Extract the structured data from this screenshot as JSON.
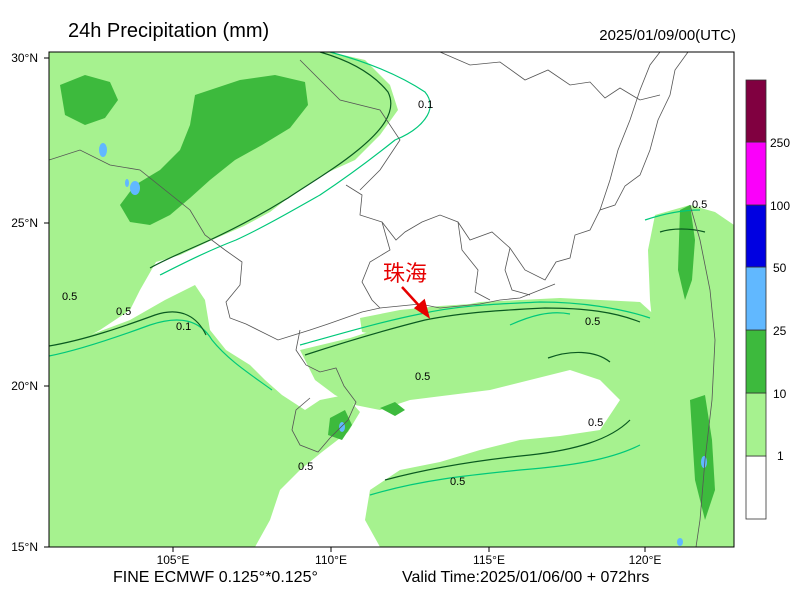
{
  "header": {
    "title": "24h Precipitation (mm)",
    "valid_date": "2025/01/09/00(UTC)"
  },
  "map": {
    "lat_labels": [
      "30°N",
      "25°N",
      "20°N",
      "15°N"
    ],
    "lon_labels": [
      "105°E",
      "110°E",
      "115°E",
      "120°E"
    ],
    "city_label": "珠海",
    "contour_labels": [
      "0.1",
      "0.5"
    ]
  },
  "colorbar": {
    "levels": [
      "1",
      "10",
      "25",
      "50",
      "100",
      "250"
    ],
    "colors": [
      "#ffffff",
      "#a6f28f",
      "#3dba3d",
      "#61b8ff",
      "#0000e1",
      "#fa00fa",
      "#800040"
    ]
  },
  "footer": {
    "model_text": "FINE ECMWF 0.125°*0.125°",
    "valid_time": "Valid Time:2025/01/06/00 + 072hrs"
  },
  "colors": {
    "light_green": "#a6f28f",
    "dark_green": "#3dba3d",
    "light_blue": "#61b8ff",
    "contour_01": "#00c87a",
    "contour_05": "#0a5a20",
    "border": "#555555",
    "arrow": "#e60000"
  }
}
